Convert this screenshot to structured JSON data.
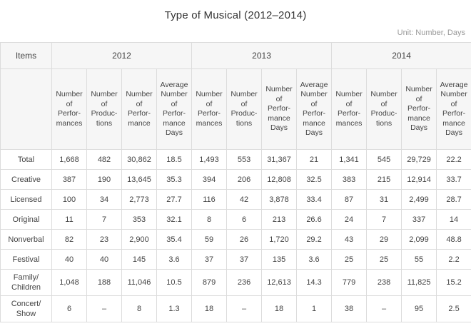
{
  "page": {
    "title": "Type of Musical (2012–2014)",
    "unit_label": "Unit: Number, Days"
  },
  "table": {
    "items_header": "Items",
    "year_groups": [
      "2012",
      "2013",
      "2014"
    ],
    "sub_headers": [
      "Number\nof\nPerfor-\nmances",
      "Number\nof\nProduc-\ntions",
      "Number\nof\nPerfor-\nmance",
      "Average\nNumber\nof\nPerfor-\nmance\nDays",
      "Number\nof\nPerfor-\nmances",
      "Number\nof\nProduc-\ntions",
      "Number\nof\nPerfor-\nmance\nDays",
      "Average\nNumber\nof\nPerfor-\nmance\nDays",
      "Number\nof\nPerfor-\nmances",
      "Number\nof\nProduc-\ntions",
      "Number\nof\nPerfor-\nmance\nDays",
      "Average\nNumber\nof\nPerfor-\nmance\nDays"
    ]
  },
  "chart_data": {
    "type": "table",
    "title": "Type of Musical (2012–2014)",
    "unit": "Number, Days",
    "column_groups": [
      {
        "year": "2012",
        "columns": [
          "Number of Performances",
          "Number of Productions",
          "Number of Performance",
          "Average Number of Performance Days"
        ]
      },
      {
        "year": "2013",
        "columns": [
          "Number of Performances",
          "Number of Productions",
          "Number of Performance Days",
          "Average Number of Performance Days"
        ]
      },
      {
        "year": "2014",
        "columns": [
          "Number of Performances",
          "Number of Productions",
          "Number of Performance Days",
          "Average Number of Performance Days"
        ]
      }
    ],
    "rows": [
      {
        "label": "Total",
        "values": [
          "1,668",
          "482",
          "30,862",
          "18.5",
          "1,493",
          "553",
          "31,367",
          "21",
          "1,341",
          "545",
          "29,729",
          "22.2"
        ]
      },
      {
        "label": "Creative",
        "values": [
          "387",
          "190",
          "13,645",
          "35.3",
          "394",
          "206",
          "12,808",
          "32.5",
          "383",
          "215",
          "12,914",
          "33.7"
        ]
      },
      {
        "label": "Licensed",
        "values": [
          "100",
          "34",
          "2,773",
          "27.7",
          "116",
          "42",
          "3,878",
          "33.4",
          "87",
          "31",
          "2,499",
          "28.7"
        ]
      },
      {
        "label": "Original",
        "values": [
          "11",
          "7",
          "353",
          "32.1",
          "8",
          "6",
          "213",
          "26.6",
          "24",
          "7",
          "337",
          "14"
        ]
      },
      {
        "label": "Nonverbal",
        "values": [
          "82",
          "23",
          "2,900",
          "35.4",
          "59",
          "26",
          "1,720",
          "29.2",
          "43",
          "29",
          "2,099",
          "48.8"
        ]
      },
      {
        "label": "Festival",
        "values": [
          "40",
          "40",
          "145",
          "3.6",
          "37",
          "37",
          "135",
          "3.6",
          "25",
          "25",
          "55",
          "2.2"
        ]
      },
      {
        "label": "Family/Children",
        "values": [
          "1,048",
          "188",
          "11,046",
          "10.5",
          "879",
          "236",
          "12,613",
          "14.3",
          "779",
          "238",
          "11,825",
          "15.2"
        ]
      },
      {
        "label": "Concert/Show",
        "values": [
          "6",
          "–",
          "8",
          "1.3",
          "18",
          "–",
          "18",
          "1",
          "38",
          "–",
          "95",
          "2.5"
        ]
      }
    ]
  },
  "colors": {
    "header_bg": "#f6f6f6",
    "border": "#dcdcdc",
    "title_text": "#333333",
    "unit_text": "#999999",
    "cell_text": "#444444"
  }
}
